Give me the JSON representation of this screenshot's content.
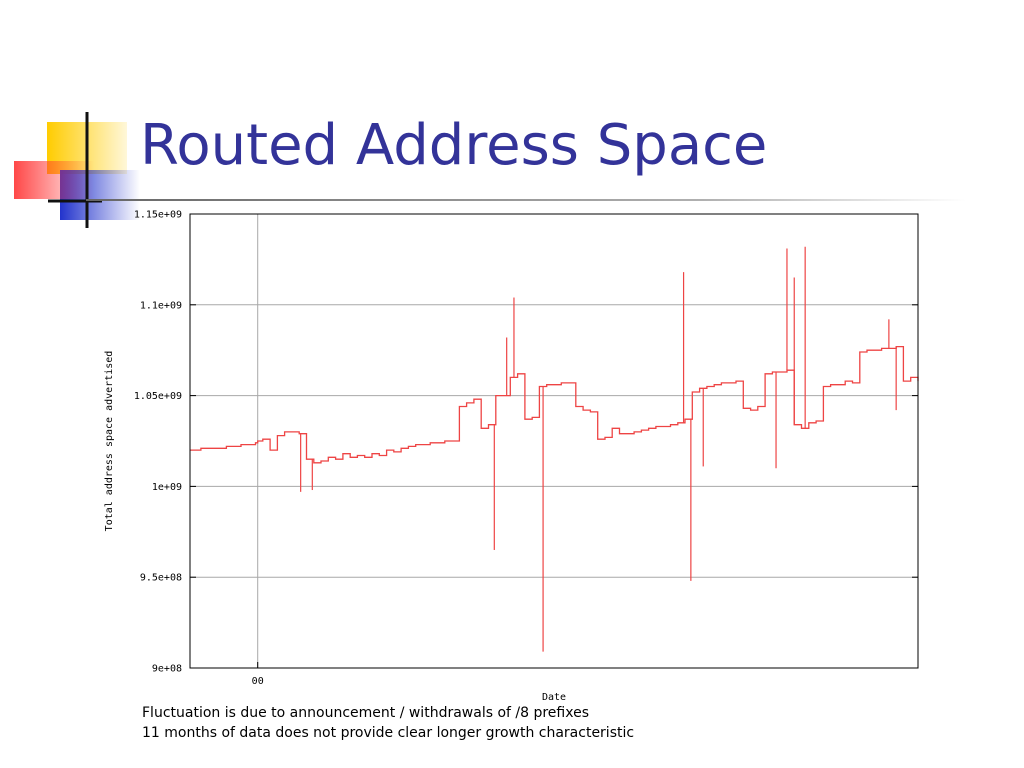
{
  "slide": {
    "title": "Routed Address Space",
    "notes": [
      "Fluctuation is due to announcement / withdrawals of /8 prefixes",
      "11 months of data does not provide clear longer growth characteristic"
    ]
  },
  "colors": {
    "title": "#333399",
    "series": "#ee4444",
    "grid": "#a8a8a8",
    "accent_yellow": "#ffcc00",
    "accent_blue": "#2233cc",
    "accent_red": "#ff3333"
  },
  "chart_data": {
    "type": "line",
    "xlabel": "Date",
    "ylabel": "Total address space advertised",
    "ylim": [
      900000000,
      1150000000
    ],
    "yticks": [
      {
        "value": 900000000,
        "label": "9e+08"
      },
      {
        "value": 950000000,
        "label": "9.5e+08"
      },
      {
        "value": 1000000000,
        "label": "1e+09"
      },
      {
        "value": 1050000000,
        "label": "1.05e+09"
      },
      {
        "value": 1100000000,
        "label": "1.1e+09"
      },
      {
        "value": 1150000000,
        "label": "1.15e+09"
      }
    ],
    "xlim": [
      0,
      100
    ],
    "xticks": [
      {
        "value": 9.3,
        "label": "00"
      }
    ],
    "grid": true,
    "legend": "none",
    "series": [
      {
        "color": "#ee4444",
        "x": [
          0,
          1.5,
          3,
          5,
          7,
          9,
          9.3,
          10,
          11,
          12,
          13,
          14,
          15,
          16,
          17,
          18,
          19,
          20,
          21,
          22,
          23,
          24,
          25,
          26,
          27,
          28,
          29,
          30,
          31,
          32,
          33,
          34,
          35,
          36,
          37,
          38,
          39,
          40,
          41,
          42,
          43,
          44,
          45,
          46,
          47,
          48,
          49,
          50,
          51,
          52,
          53,
          54,
          55,
          56,
          57,
          58,
          59,
          60,
          61,
          62,
          63,
          64,
          65,
          66,
          67,
          68,
          69,
          70,
          71,
          72,
          73,
          74,
          75,
          76,
          77,
          78,
          79,
          80,
          81,
          82,
          83,
          84,
          85,
          86,
          87,
          88,
          89,
          90,
          91,
          92,
          93,
          94,
          95,
          96,
          97,
          98,
          99,
          100
        ],
        "y": [
          1020000000,
          1021000000,
          1021000000,
          1022000000,
          1023000000,
          1024000000,
          1025000000,
          1026000000,
          1020000000,
          1028000000,
          1030000000,
          1030000000,
          1029000000,
          1015000000,
          1013000000,
          1014000000,
          1016000000,
          1015000000,
          1018000000,
          1016000000,
          1017000000,
          1016000000,
          1018000000,
          1017000000,
          1020000000,
          1019000000,
          1021000000,
          1022000000,
          1023000000,
          1023000000,
          1024000000,
          1024000000,
          1025000000,
          1025000000,
          1044000000,
          1046000000,
          1048000000,
          1032000000,
          1034000000,
          1050000000,
          1050000000,
          1060000000,
          1062000000,
          1037000000,
          1038000000,
          1055000000,
          1056000000,
          1056000000,
          1057000000,
          1057000000,
          1044000000,
          1042000000,
          1041000000,
          1026000000,
          1027000000,
          1032000000,
          1029000000,
          1029000000,
          1030000000,
          1031000000,
          1032000000,
          1033000000,
          1033000000,
          1034000000,
          1035000000,
          1037000000,
          1052000000,
          1054000000,
          1055000000,
          1056000000,
          1057000000,
          1057000000,
          1058000000,
          1043000000,
          1042000000,
          1044000000,
          1062000000,
          1063000000,
          1063000000,
          1064000000,
          1034000000,
          1032000000,
          1035000000,
          1036000000,
          1055000000,
          1056000000,
          1056000000,
          1058000000,
          1057000000,
          1074000000,
          1075000000,
          1075000000,
          1076000000,
          1076000000,
          1077000000,
          1058000000,
          1060000000,
          1058000000
        ]
      }
    ],
    "spikes": [
      {
        "x": 41.8,
        "y": 965000000
      },
      {
        "x": 43.5,
        "y": 1082000000
      },
      {
        "x": 44.5,
        "y": 1104000000
      },
      {
        "x": 48.5,
        "y": 909000000
      },
      {
        "x": 67.8,
        "y": 1118000000
      },
      {
        "x": 68.8,
        "y": 948000000
      },
      {
        "x": 82.0,
        "y": 1131000000
      },
      {
        "x": 83.0,
        "y": 1115000000
      },
      {
        "x": 84.5,
        "y": 1132000000
      },
      {
        "x": 96.0,
        "y": 1092000000
      },
      {
        "x": 97.0,
        "y": 1042000000
      },
      {
        "x": 15.2,
        "y": 997000000
      },
      {
        "x": 16.8,
        "y": 998000000
      },
      {
        "x": 70.5,
        "y": 1011000000
      },
      {
        "x": 80.5,
        "y": 1010000000
      }
    ]
  }
}
